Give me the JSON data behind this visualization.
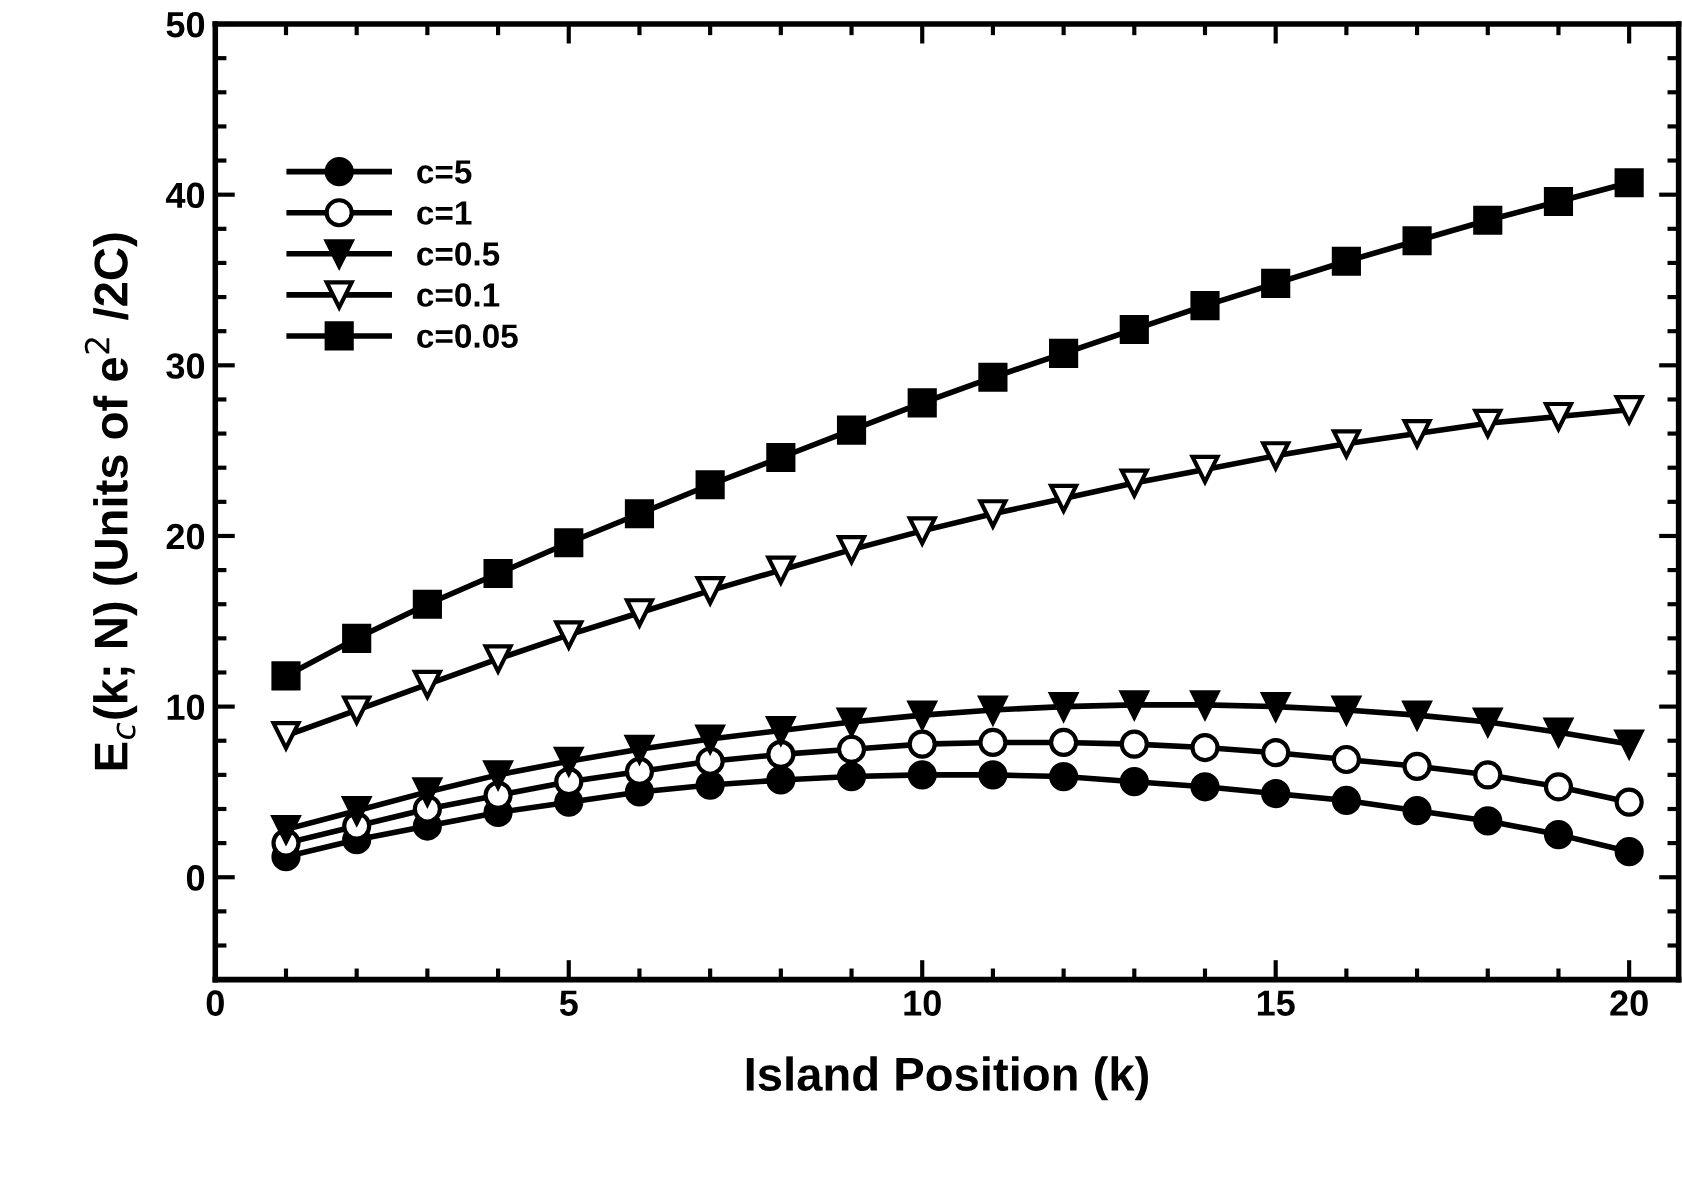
{
  "chart_data": {
    "type": "line",
    "xlabel": "Island Position (k)",
    "ylabel": "E$_{c}$(k; N) (Units of e$^{2}$ /2C)",
    "x": [
      1,
      2,
      3,
      4,
      5,
      6,
      7,
      8,
      9,
      10,
      11,
      12,
      13,
      14,
      15,
      16,
      17,
      18,
      19,
      20
    ],
    "xlim": [
      0,
      20.7
    ],
    "xticks": [
      0,
      5,
      10,
      15,
      20
    ],
    "ylim": [
      -6,
      50
    ],
    "yticks": [
      0,
      10,
      20,
      30,
      40,
      50
    ],
    "grid": false,
    "legend": "top left",
    "line_style": "solid",
    "series": [
      {
        "name": "c=5",
        "color": "#000000",
        "marker": "circle",
        "values": [
          1.2,
          2.2,
          3.0,
          3.8,
          4.4,
          5.0,
          5.4,
          5.7,
          5.9,
          6.0,
          6.0,
          5.9,
          5.6,
          5.3,
          4.9,
          4.5,
          3.9,
          3.3,
          2.5,
          1.5
        ]
      },
      {
        "name": "c=1",
        "color": "#000000",
        "marker": "circle",
        "values": [
          2.0,
          3.0,
          4.0,
          4.8,
          5.6,
          6.2,
          6.8,
          7.2,
          7.5,
          7.8,
          7.9,
          7.9,
          7.8,
          7.6,
          7.3,
          6.9,
          6.5,
          6.0,
          5.3,
          4.4
        ]
      },
      {
        "name": "c=0.5",
        "color": "#000000",
        "marker": "triangle",
        "values": [
          2.8,
          3.9,
          5.0,
          6.0,
          6.8,
          7.5,
          8.1,
          8.6,
          9.1,
          9.5,
          9.8,
          10.0,
          10.1,
          10.1,
          10.0,
          9.8,
          9.5,
          9.1,
          8.5,
          7.8
        ]
      },
      {
        "name": "c=0.1",
        "color": "#000000",
        "marker": "triangle",
        "values": [
          8.3,
          9.8,
          11.3,
          12.8,
          14.2,
          15.5,
          16.8,
          18.0,
          19.2,
          20.3,
          21.3,
          22.2,
          23.1,
          23.9,
          24.7,
          25.4,
          26.0,
          26.6,
          27.0,
          27.4
        ]
      },
      {
        "name": "c=0.05",
        "color": "#000000",
        "marker": "square",
        "values": [
          11.8,
          14.0,
          16.0,
          17.8,
          19.6,
          21.3,
          23.0,
          24.6,
          26.2,
          27.8,
          29.3,
          30.7,
          32.1,
          33.5,
          34.8,
          36.1,
          37.3,
          38.5,
          39.6,
          40.7
        ]
      }
    ]
  }
}
